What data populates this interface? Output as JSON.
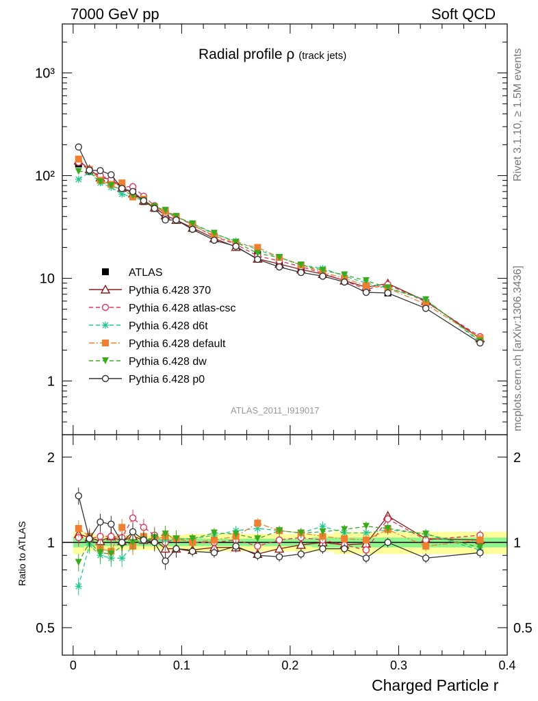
{
  "header": {
    "left": "7000 GeV pp",
    "right": "Soft QCD"
  },
  "side_texts": {
    "rivet": "Rivet 3.1.10, ≥ 1.5M events",
    "mcplots": "mcplots.cern.ch [arXiv:1306.3436]"
  },
  "chart_data": {
    "type": "line",
    "title": "Radial profile",
    "title_symbol": "ρ",
    "title_suffix": "(track jets)",
    "reference_label": "ATLAS_2011_I919017",
    "xlabel": "Charged Particle r",
    "ylabel_ratio": "Ratio to ATLAS",
    "xlim": [
      -0.01,
      0.4
    ],
    "ylim_main": [
      0.3,
      3000
    ],
    "ylim_ratio": [
      0.4,
      2.4
    ],
    "yscale_main": "log",
    "yscale_ratio": "log",
    "x_ticks": [
      "0",
      "0.1",
      "0.2",
      "0.3",
      "0.4"
    ],
    "y_ticks_main": [
      "1",
      "10",
      "10²",
      "10³"
    ],
    "y_ticks_ratio": [
      "0.5",
      "1",
      "2"
    ],
    "legend_placement": "left-middle",
    "x": [
      0.005,
      0.015,
      0.025,
      0.035,
      0.045,
      0.055,
      0.065,
      0.075,
      0.085,
      0.095,
      0.11,
      0.13,
      0.15,
      0.17,
      0.19,
      0.21,
      0.23,
      0.25,
      0.27,
      0.29,
      0.325,
      0.375
    ],
    "series": [
      {
        "name": "ATLAS",
        "color": "#000000",
        "marker": "filled-square",
        "values": [
          130,
          110,
          95,
          88,
          75,
          64,
          56,
          48,
          43,
          39,
          33,
          25.5,
          21,
          17,
          14.5,
          12.5,
          11,
          9.7,
          8.3,
          7.2,
          5.8,
          2.55
        ]
      },
      {
        "name": "Pythia 6.428 370",
        "color": "#8b1a1a",
        "marker": "open-triangle",
        "dash": "solid",
        "values": [
          140,
          115,
          96,
          92,
          76,
          67,
          57,
          49,
          41,
          37,
          31,
          24.5,
          20.2,
          15.5,
          13.8,
          12.2,
          11.0,
          9.5,
          8.2,
          8.9,
          6.0,
          2.6
        ]
      },
      {
        "name": "Pythia 6.428 atlas-csc",
        "color": "#e0305a",
        "marker": "open-circle",
        "dash": "dashed",
        "values": [
          135,
          113,
          100,
          92,
          78,
          78,
          63,
          51,
          43,
          40,
          33,
          25.5,
          21.5,
          16.5,
          14.8,
          13.0,
          11.2,
          9.5,
          7.8,
          8.7,
          5.9,
          2.7
        ]
      },
      {
        "name": "Pythia 6.428 d6t",
        "color": "#20c890",
        "marker": "asterisk",
        "dash": "dashed",
        "values": [
          92,
          108,
          85,
          77,
          66,
          62,
          57,
          49,
          44,
          40,
          34,
          27,
          23,
          19,
          16,
          13.5,
          12.5,
          10.5,
          9.0,
          8.0,
          6.2,
          2.4
        ]
      },
      {
        "name": "Pythia 6.428 default",
        "color": "#f08030",
        "marker": "filled-square",
        "dash": "dashdot",
        "values": [
          145,
          115,
          90,
          82,
          85,
          62,
          59,
          49,
          45,
          40,
          33,
          26,
          22,
          20,
          16,
          13.5,
          11.5,
          10,
          8.5,
          8.0,
          5.6,
          2.6
        ]
      },
      {
        "name": "Pythia 6.428 dw",
        "color": "#3aaa1e",
        "marker": "filled-triangle-down",
        "dash": "dashed",
        "values": [
          110,
          110,
          87,
          80,
          73,
          64,
          57,
          50,
          46,
          40,
          34,
          27.5,
          22.5,
          17.5,
          16,
          13.5,
          12.0,
          10.8,
          9.5,
          8.1,
          6.2,
          2.45
        ]
      },
      {
        "name": "Pythia 6.428 p0",
        "color": "#333333",
        "marker": "open-circle",
        "dash": "solid",
        "values": [
          190,
          113,
          112,
          102,
          75,
          70,
          57,
          48,
          37,
          37,
          30,
          23.5,
          20.5,
          15.3,
          12.9,
          11.4,
          10.5,
          9.2,
          7.3,
          7.2,
          5.1,
          2.35
        ]
      }
    ],
    "ratio_series": [
      {
        "name": "Pythia 6.428 370",
        "values": [
          1.07,
          1.04,
          1.01,
          1.05,
          1.01,
          1.05,
          1.02,
          1.02,
          0.95,
          0.95,
          0.94,
          0.96,
          0.96,
          0.91,
          0.95,
          0.98,
          1.0,
          0.98,
          0.99,
          1.24,
          1.03,
          1.02
        ]
      },
      {
        "name": "Pythia 6.428 atlas-csc",
        "values": [
          1.04,
          1.03,
          1.05,
          1.05,
          1.04,
          1.22,
          1.13,
          1.06,
          1.0,
          1.03,
          1.0,
          1.0,
          1.02,
          0.97,
          1.02,
          1.04,
          1.02,
          0.98,
          0.94,
          1.21,
          1.02,
          1.06
        ]
      },
      {
        "name": "Pythia 6.428 d6t",
        "values": [
          0.7,
          0.98,
          0.9,
          0.88,
          0.88,
          0.97,
          1.02,
          1.02,
          1.02,
          1.03,
          1.03,
          1.06,
          1.1,
          1.12,
          1.1,
          1.08,
          1.14,
          1.08,
          1.08,
          1.11,
          1.07,
          0.94
        ]
      },
      {
        "name": "Pythia 6.428 default",
        "values": [
          1.12,
          1.05,
          0.95,
          0.93,
          1.13,
          0.97,
          1.05,
          1.02,
          1.05,
          1.03,
          1.0,
          1.02,
          1.05,
          1.17,
          1.1,
          1.08,
          1.05,
          1.03,
          1.02,
          1.11,
          0.97,
          1.02
        ]
      },
      {
        "name": "Pythia 6.428 dw",
        "values": [
          0.85,
          1.0,
          0.92,
          0.91,
          0.97,
          1.0,
          1.02,
          1.04,
          1.07,
          1.03,
          1.03,
          1.08,
          1.07,
          1.03,
          1.1,
          1.08,
          1.09,
          1.11,
          1.14,
          1.12,
          1.07,
          0.96
        ]
      },
      {
        "name": "Pythia 6.428 p0",
        "values": [
          1.46,
          1.03,
          1.18,
          1.16,
          1.0,
          1.09,
          1.02,
          1.0,
          0.86,
          0.95,
          0.93,
          0.92,
          0.97,
          0.9,
          0.89,
          0.91,
          0.95,
          0.95,
          0.88,
          1.0,
          0.88,
          0.92
        ]
      }
    ],
    "band_yellow_half_width": [
      0.09,
      0.07,
      0.06,
      0.06,
      0.06,
      0.06,
      0.06,
      0.06,
      0.06,
      0.06,
      0.07,
      0.07,
      0.07,
      0.07,
      0.07,
      0.07,
      0.07,
      0.09,
      0.09,
      0.09,
      0.09,
      0.09
    ],
    "band_green_half_width": [
      0.04,
      0.03,
      0.03,
      0.03,
      0.03,
      0.03,
      0.03,
      0.03,
      0.03,
      0.03,
      0.03,
      0.03,
      0.03,
      0.03,
      0.03,
      0.03,
      0.04,
      0.04,
      0.04,
      0.04,
      0.04,
      0.04
    ]
  }
}
